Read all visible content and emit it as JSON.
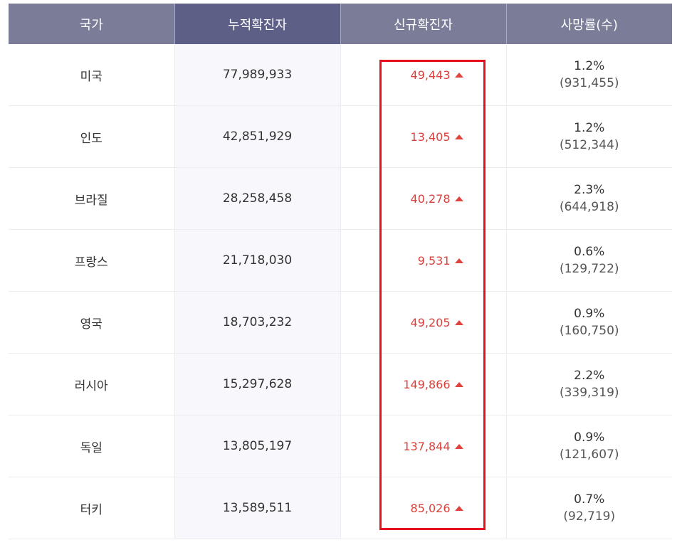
{
  "headers": [
    "국가",
    "누적확진자",
    "신규확진자",
    "사망률(수)"
  ],
  "rows": [
    {
      "country": "미국",
      "total": "77,989,933",
      "new": "49,443",
      "rate": "1.2%",
      "deaths": "(931,455)"
    },
    {
      "country": "인도",
      "total": "42,851,929",
      "new": "13,405",
      "rate": "1.2%",
      "deaths": "(512,344)"
    },
    {
      "country": "브라질",
      "total": "28,258,458",
      "new": "40,278",
      "rate": "2.3%",
      "deaths": "(644,918)"
    },
    {
      "country": "프랑스",
      "total": "21,718,030",
      "new": "9,531",
      "rate": "0.6%",
      "deaths": "(129,722)"
    },
    {
      "country": "영국",
      "total": "18,703,232",
      "new": "49,205",
      "rate": "0.9%",
      "deaths": "(160,750)"
    },
    {
      "country": "러시아",
      "total": "15,297,628",
      "new": "149,866",
      "rate": "2.2%",
      "deaths": "(339,319)"
    },
    {
      "country": "독일",
      "total": "13,805,197",
      "new": "137,844",
      "rate": "0.9%",
      "deaths": "(121,607)"
    },
    {
      "country": "터키",
      "total": "13,589,511",
      "new": "85,026",
      "rate": "0.7%",
      "deaths": "(92,719)"
    }
  ],
  "colors": {
    "header_bg": "#7b7d98",
    "header_active_bg": "#5d5f87",
    "increase_red": "#d9403b",
    "highlight_border": "#e8101c"
  },
  "icons": {
    "increase": "up-triangle-icon"
  }
}
